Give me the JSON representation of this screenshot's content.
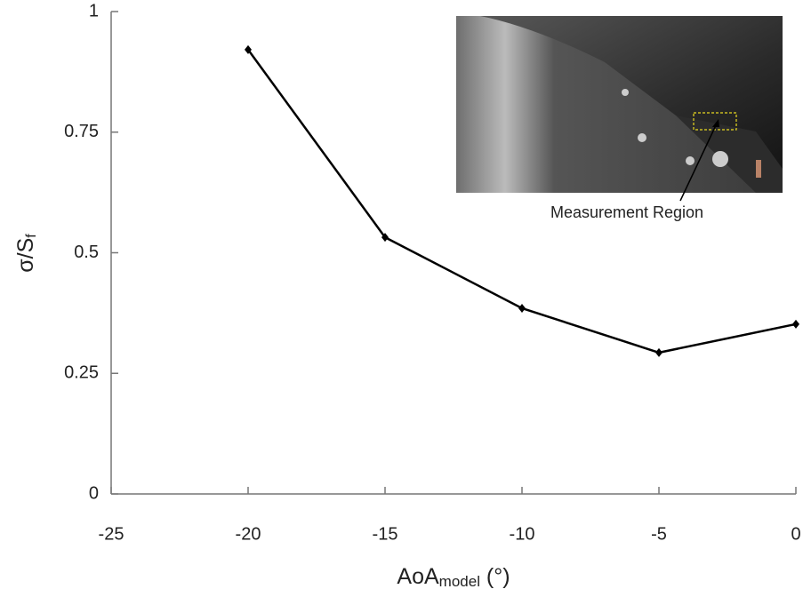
{
  "chart_data": {
    "type": "line",
    "x": [
      -20,
      -15,
      -10,
      -5,
      0
    ],
    "series": [
      {
        "color": "#000000",
        "values": [
          0.921,
          0.532,
          0.385,
          0.293,
          0.352
        ]
      }
    ],
    "xlim": [
      -25,
      0
    ],
    "xticks": [
      -25,
      -20,
      -15,
      -10,
      -5,
      0
    ],
    "ylim": [
      0,
      1
    ],
    "yticks": [
      0,
      0.25,
      0.5,
      0.75,
      1
    ],
    "xlabel": [
      "AoA",
      "model",
      " (°)"
    ],
    "ylabel": [
      "σ/S",
      "f"
    ],
    "annotation": "Measurement Region"
  }
}
